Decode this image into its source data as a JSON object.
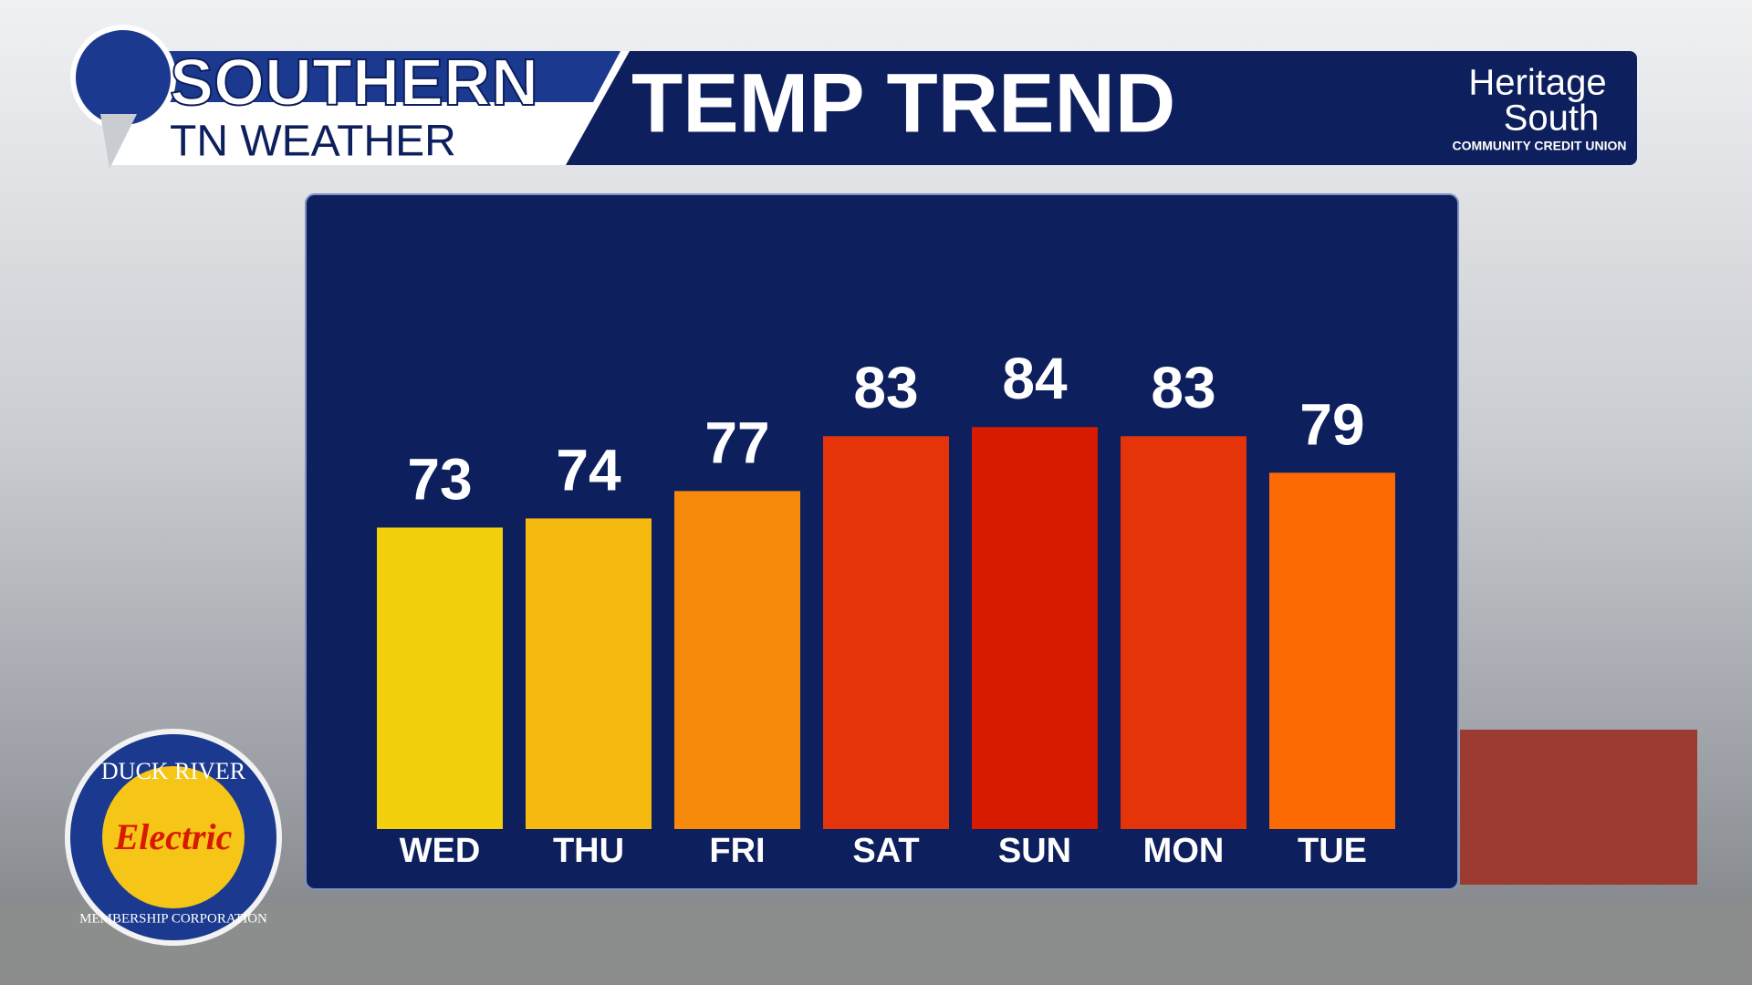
{
  "branding": {
    "show_top": "SOUTHERN",
    "show_bottom": "TN WEATHER",
    "sponsor_top": "Heritage",
    "sponsor_bottom": "South",
    "sponsor_sub": "COMMUNITY CREDIT UNION",
    "logo_top": "DUCK RIVER",
    "logo_mid": "Electric",
    "logo_bottom": "MEMBERSHIP CORPORATION"
  },
  "chart_data": {
    "type": "bar",
    "title": "TEMP TREND",
    "categories": [
      "WED",
      "THU",
      "FRI",
      "SAT",
      "SUN",
      "MON",
      "TUE"
    ],
    "values": [
      73,
      74,
      77,
      83,
      84,
      83,
      79
    ],
    "colors": [
      "#f2d00d",
      "#f5b90f",
      "#f78a0a",
      "#e5330a",
      "#d81a00",
      "#e5330a",
      "#fb6a05"
    ],
    "ylim": [
      40,
      100
    ]
  }
}
